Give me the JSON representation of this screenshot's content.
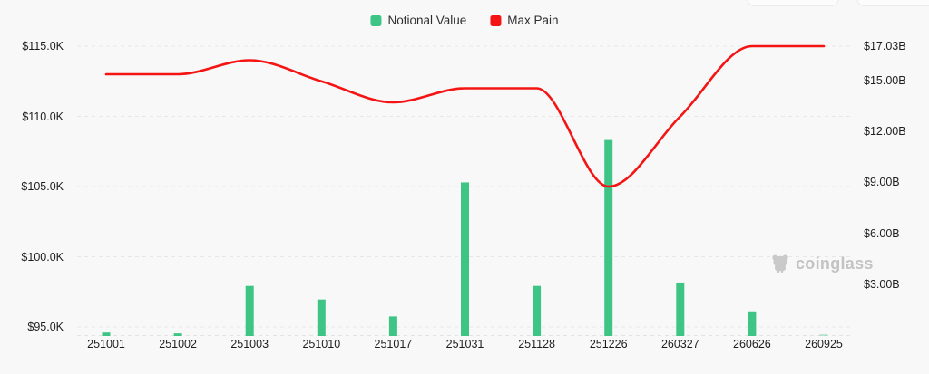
{
  "legend": {
    "items": [
      {
        "label": "Notional Value",
        "color": "#3EC586"
      },
      {
        "label": "Max Pain",
        "color": "#F51414"
      }
    ]
  },
  "watermark": {
    "label": "coinglass"
  },
  "chart_data": {
    "type": "bar",
    "subtype": "dual-axis bar + smooth line",
    "title": "",
    "categories": [
      "251001",
      "251002",
      "251003",
      "251010",
      "251017",
      "251031",
      "251128",
      "251226",
      "260327",
      "260626",
      "260925"
    ],
    "series": [
      {
        "name": "Notional Value",
        "type": "bar",
        "axis": "right",
        "unit": "$B",
        "color": "#3EC586",
        "values": [
          0.15,
          0.1,
          2.9,
          2.1,
          1.1,
          9.0,
          2.9,
          11.5,
          3.1,
          1.4,
          0.05
        ]
      },
      {
        "name": "Max Pain",
        "type": "line",
        "axis": "left",
        "unit": "$K",
        "color": "#F51414",
        "values": [
          113.0,
          113.0,
          114.0,
          112.5,
          111.0,
          112.0,
          112.0,
          105.0,
          110.0,
          115.0,
          115.0
        ]
      }
    ],
    "left_axis": {
      "ticks": [
        {
          "label": "$115.0K",
          "value": 115
        },
        {
          "label": "$110.0K",
          "value": 110
        },
        {
          "label": "$105.0K",
          "value": 105
        },
        {
          "label": "$100.0K",
          "value": 100
        },
        {
          "label": "$95.0K",
          "value": 95
        }
      ]
    },
    "right_axis": {
      "ticks": [
        {
          "label": "$17.03B",
          "value": 17.03
        },
        {
          "label": "$15.00B",
          "value": 15
        },
        {
          "label": "$12.00B",
          "value": 12
        },
        {
          "label": "$9.00B",
          "value": 9
        },
        {
          "label": "$6.00B",
          "value": 6
        },
        {
          "label": "$3.00B",
          "value": 3
        }
      ]
    },
    "ylim_left": [
      94.3,
      115.6
    ],
    "ylim_right": [
      0,
      17.6
    ],
    "grid": "dashed-horizontal",
    "legend_position": "top-center"
  }
}
